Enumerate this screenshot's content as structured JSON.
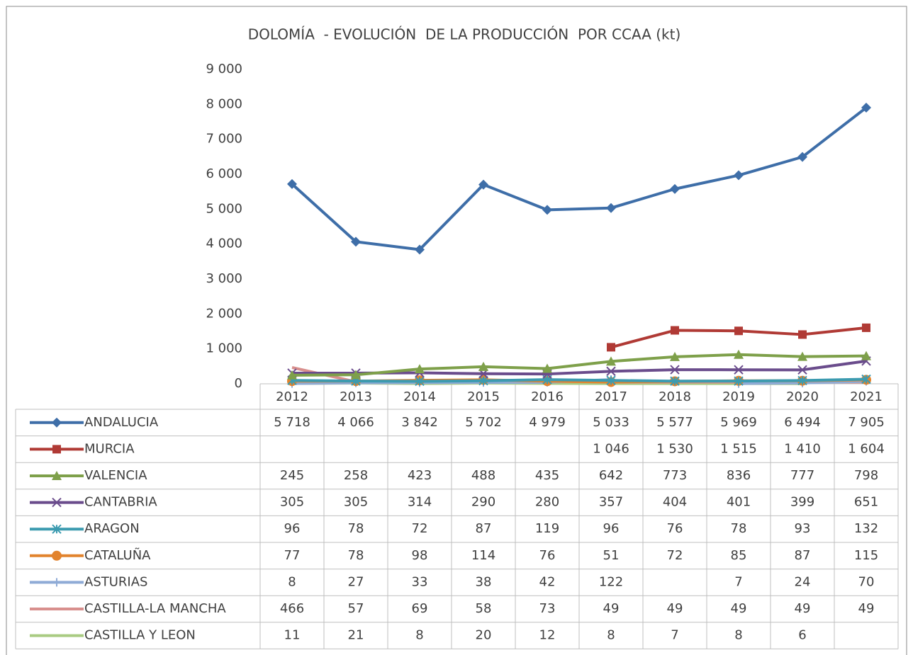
{
  "chart_data": {
    "type": "line",
    "title": "DOLOMÍA  - EVOLUCIÓN  DE LA PRODUCCIÓN  POR CCAA (kt)",
    "categories": [
      "2012",
      "2013",
      "2014",
      "2015",
      "2016",
      "2017",
      "2018",
      "2019",
      "2020",
      "2021"
    ],
    "ylim": [
      0,
      9000
    ],
    "yticks": [
      0,
      {
        "value": 1000,
        "label": "1 000"
      },
      {
        "value": 2000,
        "label": "2 000"
      },
      {
        "value": 3000,
        "label": "3 000"
      },
      {
        "value": 4000,
        "label": "4 000"
      },
      {
        "value": 5000,
        "label": "5 000"
      },
      {
        "value": 6000,
        "label": "6 000"
      },
      {
        "value": 7000,
        "label": "7 000"
      },
      {
        "value": 8000,
        "label": "8 000"
      },
      {
        "value": 9000,
        "label": "9 000"
      }
    ],
    "grid": false,
    "series": [
      {
        "name": "ANDALUCIA",
        "color": "#3e6ea8",
        "marker": "diamond",
        "values": [
          5718,
          4066,
          3842,
          5702,
          4979,
          5033,
          5577,
          5969,
          6494,
          7905
        ],
        "value_labels": [
          "5 718",
          "4 066",
          "3 842",
          "5 702",
          "4 979",
          "5 033",
          "5 577",
          "5 969",
          "6 494",
          "7 905"
        ]
      },
      {
        "name": "MURCIA",
        "color": "#b03a35",
        "marker": "square",
        "values": [
          null,
          null,
          null,
          null,
          null,
          1046,
          1530,
          1515,
          1410,
          1604
        ],
        "value_labels": [
          null,
          null,
          null,
          null,
          null,
          "1 046",
          "1 530",
          "1 515",
          "1 410",
          "1 604"
        ]
      },
      {
        "name": "VALENCIA",
        "color": "#7ea04a",
        "marker": "triangle",
        "values": [
          245,
          258,
          423,
          488,
          435,
          642,
          773,
          836,
          777,
          798
        ]
      },
      {
        "name": "CANTABRIA",
        "color": "#6a4c8c",
        "marker": "x",
        "values": [
          305,
          305,
          314,
          290,
          280,
          357,
          404,
          401,
          399,
          651
        ]
      },
      {
        "name": "ARAGON",
        "color": "#3c9bb0",
        "marker": "star",
        "values": [
          96,
          78,
          72,
          87,
          119,
          96,
          76,
          78,
          93,
          132
        ]
      },
      {
        "name": "CATALUÑA",
        "color": "#e2832d",
        "marker": "circle",
        "values": [
          77,
          78,
          98,
          114,
          76,
          51,
          72,
          85,
          87,
          115
        ]
      },
      {
        "name": "ASTURIAS",
        "color": "#8fabd6",
        "marker": "plus",
        "values": [
          8,
          27,
          33,
          38,
          42,
          122,
          null,
          7,
          24,
          70
        ]
      },
      {
        "name": "CASTILLA-LA MANCHA",
        "color": "#d88f8d",
        "marker": "none",
        "values": [
          466,
          57,
          69,
          58,
          73,
          49,
          49,
          49,
          49,
          49
        ]
      },
      {
        "name": "CASTILLA Y LEON",
        "color": "#a9cb82",
        "marker": "none",
        "values": [
          11,
          21,
          8,
          20,
          12,
          8,
          7,
          8,
          6,
          null
        ]
      }
    ]
  }
}
